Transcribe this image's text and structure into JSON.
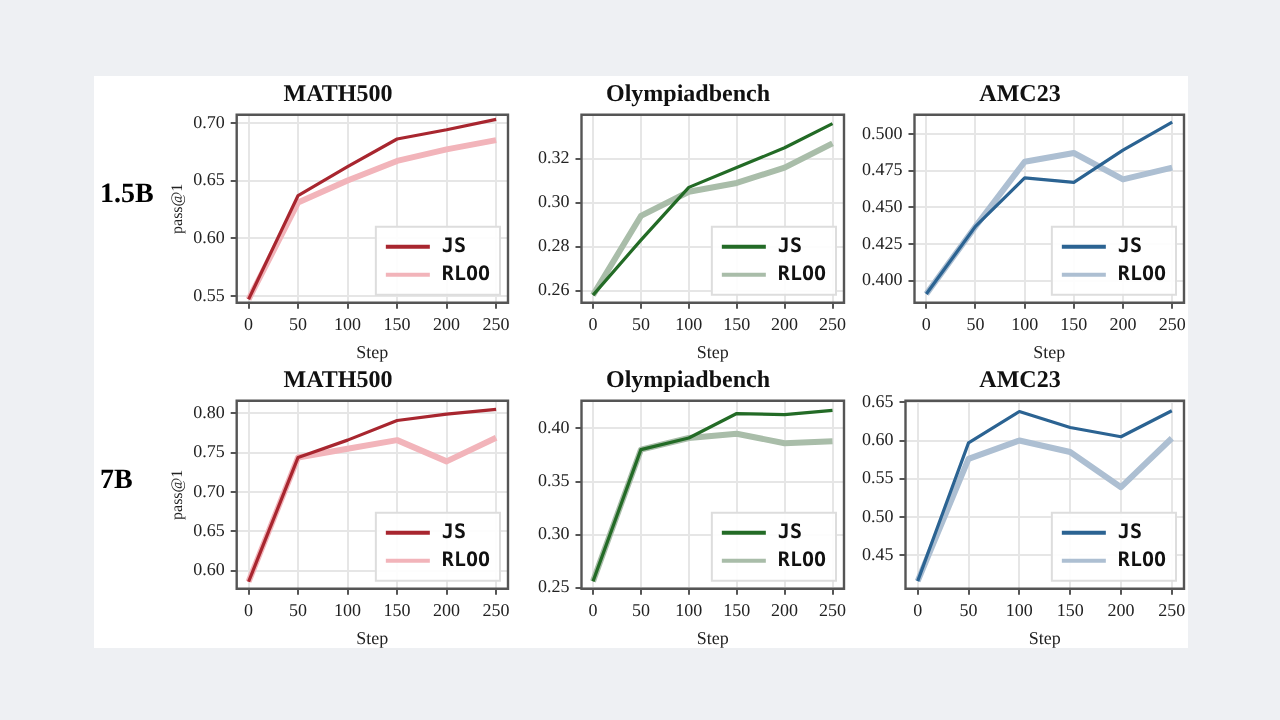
{
  "chart_data": [
    {
      "type": "line",
      "title": "MATH500",
      "xlabel": "Step",
      "ylabel": "pass@1",
      "annotations": [
        "1.5B"
      ],
      "x": [
        0,
        50,
        100,
        150,
        200,
        250
      ],
      "xlim": [
        -12,
        262
      ],
      "xticks": [
        0,
        50,
        100,
        150,
        200,
        250
      ],
      "ylim": [
        0.544,
        0.707
      ],
      "yticks": [
        {
          "value": 0.55,
          "label": "0.55"
        },
        {
          "value": 0.6,
          "label": "0.60"
        },
        {
          "value": 0.65,
          "label": "0.65"
        },
        {
          "value": 0.7,
          "label": "0.70"
        }
      ],
      "grid": true,
      "legend": "bottom right",
      "series": [
        {
          "name": "JS",
          "color": "#a8262f",
          "values": [
            0.547,
            0.637,
            0.662,
            0.686,
            0.694,
            0.703
          ]
        },
        {
          "name": "RLOO",
          "color": "#f2b4ba",
          "values": [
            0.547,
            0.631,
            0.65,
            0.667,
            0.677,
            0.685
          ]
        }
      ]
    },
    {
      "type": "line",
      "title": "Olympiadbench",
      "xlabel": "Step",
      "x": [
        0,
        50,
        100,
        150,
        200,
        250
      ],
      "xlim": [
        -12,
        262
      ],
      "xticks": [
        0,
        50,
        100,
        150,
        200,
        250
      ],
      "ylim": [
        0.2545,
        0.34
      ],
      "yticks": [
        {
          "value": 0.26,
          "label": "0.26"
        },
        {
          "value": 0.28,
          "label": "0.28"
        },
        {
          "value": 0.3,
          "label": "0.30"
        },
        {
          "value": 0.32,
          "label": "0.32"
        }
      ],
      "grid": true,
      "legend": "bottom right",
      "series": [
        {
          "name": "JS",
          "color": "#236b26",
          "values": [
            0.258,
            0.283,
            0.307,
            0.316,
            0.325,
            0.336
          ]
        },
        {
          "name": "RLOO",
          "color": "#a9bda9",
          "values": [
            0.258,
            0.294,
            0.305,
            0.309,
            0.316,
            0.327
          ]
        }
      ]
    },
    {
      "type": "line",
      "title": "AMC23",
      "xlabel": "Step",
      "x": [
        0,
        50,
        100,
        150,
        200,
        250
      ],
      "xlim": [
        -12,
        262
      ],
      "xticks": [
        0,
        50,
        100,
        150,
        200,
        250
      ],
      "ylim": [
        0.385,
        0.513
      ],
      "yticks": [
        {
          "value": 0.4,
          "label": "0.400"
        },
        {
          "value": 0.425,
          "label": "0.425"
        },
        {
          "value": 0.45,
          "label": "0.450"
        },
        {
          "value": 0.475,
          "label": "0.475"
        },
        {
          "value": 0.5,
          "label": "0.500"
        }
      ],
      "grid": true,
      "legend": "bottom right",
      "series": [
        {
          "name": "JS",
          "color": "#2b6392",
          "values": [
            0.391,
            0.437,
            0.47,
            0.467,
            0.489,
            0.508
          ]
        },
        {
          "name": "RLOO",
          "color": "#adbfd2",
          "values": [
            0.391,
            0.437,
            0.481,
            0.487,
            0.469,
            0.477
          ]
        }
      ]
    },
    {
      "type": "line",
      "title": "MATH500",
      "xlabel": "Step",
      "ylabel": "pass@1",
      "annotations": [
        "7B"
      ],
      "x": [
        0,
        50,
        100,
        150,
        200,
        250
      ],
      "xlim": [
        -12,
        262
      ],
      "xticks": [
        0,
        50,
        100,
        150,
        200,
        250
      ],
      "ylim": [
        0.577,
        0.816
      ],
      "yticks": [
        {
          "value": 0.6,
          "label": "0.60"
        },
        {
          "value": 0.65,
          "label": "0.65"
        },
        {
          "value": 0.7,
          "label": "0.70"
        },
        {
          "value": 0.75,
          "label": "0.75"
        },
        {
          "value": 0.8,
          "label": "0.80"
        }
      ],
      "grid": true,
      "legend": "bottom right",
      "series": [
        {
          "name": "JS",
          "color": "#a8262f",
          "values": [
            0.586,
            0.744,
            0.766,
            0.791,
            0.799,
            0.805
          ]
        },
        {
          "name": "RLOO",
          "color": "#f2b4ba",
          "values": [
            0.586,
            0.744,
            0.755,
            0.766,
            0.739,
            0.769
          ]
        }
      ]
    },
    {
      "type": "line",
      "title": "Olympiadbench",
      "xlabel": "Step",
      "x": [
        0,
        50,
        100,
        150,
        200,
        250
      ],
      "xlim": [
        -12,
        262
      ],
      "xticks": [
        0,
        50,
        100,
        150,
        200,
        250
      ],
      "ylim": [
        0.249,
        0.426
      ],
      "yticks": [
        {
          "value": 0.25,
          "label": "0.25"
        },
        {
          "value": 0.3,
          "label": "0.30"
        },
        {
          "value": 0.35,
          "label": "0.35"
        },
        {
          "value": 0.4,
          "label": "0.40"
        }
      ],
      "grid": true,
      "legend": "bottom right",
      "series": [
        {
          "name": "JS",
          "color": "#236b26",
          "values": [
            0.256,
            0.38,
            0.391,
            0.414,
            0.413,
            0.417
          ]
        },
        {
          "name": "RLOO",
          "color": "#a9bda9",
          "values": [
            0.256,
            0.38,
            0.391,
            0.395,
            0.386,
            0.388
          ]
        }
      ]
    },
    {
      "type": "line",
      "title": "AMC23",
      "xlabel": "Step",
      "x": [
        0,
        50,
        100,
        150,
        200,
        250
      ],
      "xlim": [
        -12,
        262
      ],
      "xticks": [
        0,
        50,
        100,
        150,
        200,
        250
      ],
      "ylim": [
        0.406,
        0.652
      ],
      "yticks": [
        {
          "value": 0.45,
          "label": "0.45"
        },
        {
          "value": 0.5,
          "label": "0.50"
        },
        {
          "value": 0.55,
          "label": "0.55"
        },
        {
          "value": 0.6,
          "label": "0.60"
        },
        {
          "value": 0.65,
          "label": "0.65"
        }
      ],
      "grid": true,
      "legend": "bottom right",
      "series": [
        {
          "name": "JS",
          "color": "#2b6392",
          "values": [
            0.416,
            0.597,
            0.638,
            0.617,
            0.605,
            0.639
          ]
        },
        {
          "name": "RLOO",
          "color": "#adbfd2",
          "values": [
            0.416,
            0.576,
            0.6,
            0.585,
            0.539,
            0.603
          ]
        }
      ]
    }
  ]
}
